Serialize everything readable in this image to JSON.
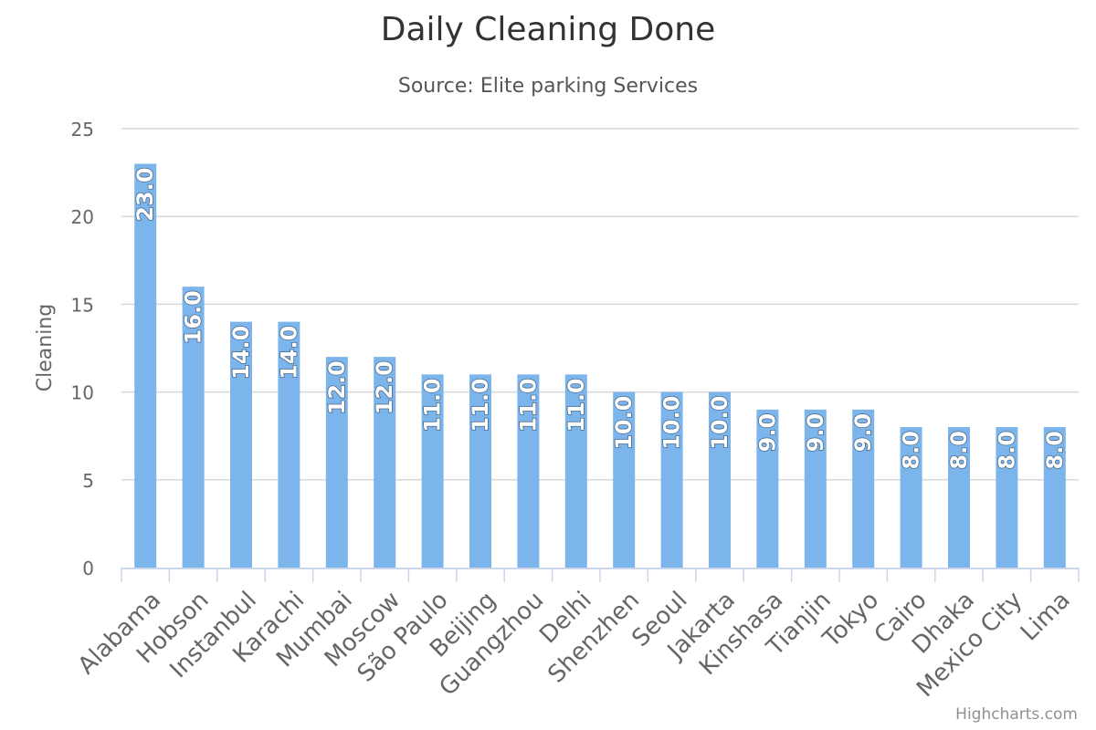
{
  "chart_data": {
    "type": "bar",
    "title": "Daily Cleaning Done",
    "subtitle": "Source: Elite parking Services",
    "xlabel": "",
    "ylabel": "Cleaning",
    "ylim": [
      0,
      25
    ],
    "yticks": [
      0,
      5,
      10,
      15,
      20,
      25
    ],
    "grid": true,
    "legend": "none",
    "categories": [
      "Alabama",
      "Hobson",
      "Instanbul",
      "Karachi",
      "Mumbai",
      "Moscow",
      "São Paulo",
      "Beijing",
      "Guangzhou",
      "Delhi",
      "Shenzhen",
      "Seoul",
      "Jakarta",
      "Kinshasa",
      "Tianjin",
      "Tokyo",
      "Cairo",
      "Dhaka",
      "Mexico City",
      "Lima"
    ],
    "values": [
      23,
      16,
      14,
      14,
      12,
      12,
      11,
      11,
      11,
      11,
      10,
      10,
      10,
      9,
      9,
      9,
      8,
      8,
      8,
      8
    ],
    "data_labels": [
      "23.0",
      "16.0",
      "14.0",
      "14.0",
      "12.0",
      "12.0",
      "11.0",
      "11.0",
      "11.0",
      "11.0",
      "10.0",
      "10.0",
      "10.0",
      "9.0",
      "9.0",
      "9.0",
      "8.0",
      "8.0",
      "8.0",
      "8.0"
    ],
    "colors": {
      "bar": "#7cb5ec",
      "grid": "#d8d8d8",
      "axis": "#ccd6eb",
      "label_text": "#ffffff"
    }
  },
  "credits": "Highcharts.com"
}
